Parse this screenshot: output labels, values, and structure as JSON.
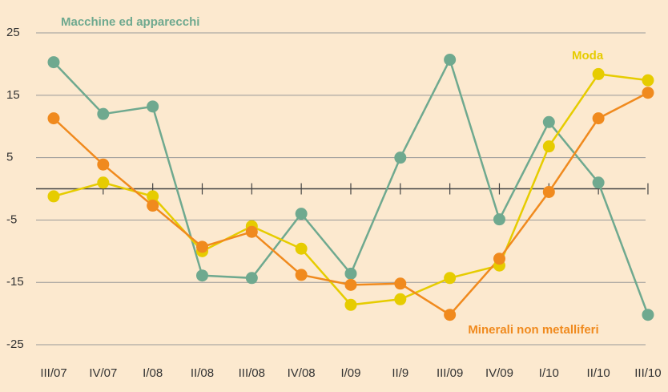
{
  "chart_data": {
    "type": "line",
    "categories": [
      "III/07",
      "IV/07",
      "I/08",
      "II/08",
      "III/08",
      "IV/08",
      "I/09",
      "II/9",
      "III/09",
      "IV/09",
      "I/10",
      "II/10",
      "III/10"
    ],
    "series": [
      {
        "name": "Macchine ed apparecchi",
        "color": "#6fa98f",
        "values": [
          20.3,
          12,
          13.2,
          -13.9,
          -14.3,
          -4,
          -13.6,
          5,
          20.7,
          -4.9,
          10.7,
          1,
          -20.2
        ]
      },
      {
        "name": "Moda",
        "color": "#e6cc00",
        "values": [
          -1.2,
          1,
          -1.2,
          -10,
          -6,
          -9.6,
          -18.6,
          -17.7,
          -14.3,
          -12.3,
          6.8,
          18.4,
          17.4
        ]
      },
      {
        "name": "Minerali non metalliferi",
        "color": "#f08a1e",
        "values": [
          11.3,
          3.9,
          -2.7,
          -9.3,
          -6.9,
          -13.8,
          -15.4,
          -15.2,
          -20.2,
          -11.2,
          -0.5,
          11.3,
          15.4
        ]
      }
    ],
    "ylim": [
      -28,
      28
    ],
    "yticks": [
      25,
      15,
      5,
      -5,
      -15,
      -25
    ],
    "grid": true
  }
}
